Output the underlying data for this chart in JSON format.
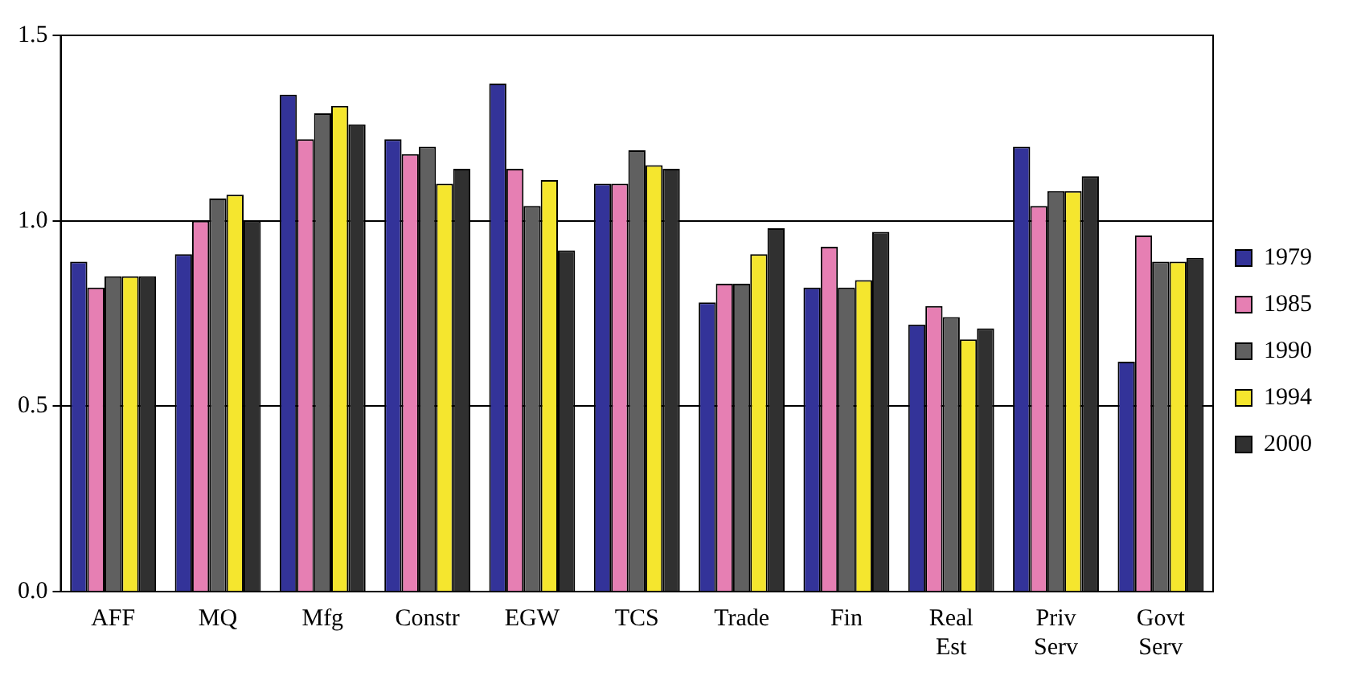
{
  "chart_data": {
    "type": "bar",
    "categories": [
      "AFF",
      "MQ",
      "Mfg",
      "Constr",
      "EGW",
      "TCS",
      "Trade",
      "Fin",
      "Real Est",
      "Priv Serv",
      "Govt Serv"
    ],
    "series": [
      {
        "name": "1979",
        "color": "#333399",
        "values": [
          0.89,
          0.91,
          1.34,
          1.22,
          1.37,
          1.1,
          0.78,
          0.82,
          0.72,
          1.2,
          0.62
        ]
      },
      {
        "name": "1985",
        "color": "#e67fb3",
        "values": [
          0.82,
          1.0,
          1.22,
          1.18,
          1.14,
          1.1,
          0.83,
          0.93,
          0.77,
          1.04,
          0.96
        ]
      },
      {
        "name": "1990",
        "color": "#606060",
        "values": [
          0.85,
          1.06,
          1.29,
          1.2,
          1.04,
          1.19,
          0.83,
          0.82,
          0.74,
          1.08,
          0.89
        ]
      },
      {
        "name": "1994",
        "color": "#f5e62e",
        "values": [
          0.85,
          1.07,
          1.31,
          1.1,
          1.11,
          1.15,
          0.91,
          0.84,
          0.68,
          1.08,
          0.89
        ]
      },
      {
        "name": "2000",
        "color": "#303030",
        "values": [
          0.85,
          1.0,
          1.26,
          1.14,
          0.92,
          1.14,
          0.98,
          0.97,
          0.71,
          1.12,
          0.9
        ]
      }
    ],
    "ylim": [
      0,
      1.5
    ],
    "yticks": [
      {
        "value": 0,
        "label": "0.0"
      },
      {
        "value": 0.5,
        "label": "0.5"
      },
      {
        "value": 1,
        "label": "1.0"
      },
      {
        "value": 1.5,
        "label": "1.5"
      }
    ],
    "grid": "y",
    "legend": "right"
  }
}
